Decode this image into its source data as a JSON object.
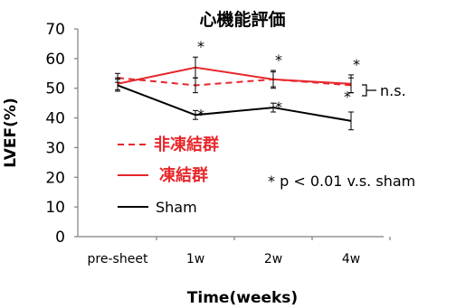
{
  "chart_data": {
    "type": "line",
    "title": "心機能評価",
    "xlabel": "Time(weeks)",
    "ylabel": "LVEF(%)",
    "ylim": [
      0,
      70
    ],
    "yticks": [
      "0",
      "10",
      "20",
      "30",
      "40",
      "50",
      "60",
      "70"
    ],
    "categories": [
      "pre-sheet",
      "1w",
      "2w",
      "4w"
    ],
    "series": [
      {
        "name": "非凍結群",
        "color": "#e8262b",
        "dash": true,
        "values": [
          53.5,
          51,
          53,
          51
        ],
        "errors": [
          1.5,
          2.5,
          2.5,
          2.5
        ]
      },
      {
        "name": "凍結群",
        "color": "#e8262b",
        "dash": false,
        "values": [
          51.5,
          57,
          53,
          51.5
        ],
        "errors": [
          2,
          3.5,
          3,
          3
        ]
      },
      {
        "name": "Sham",
        "color": "#000000",
        "dash": false,
        "values": [
          51,
          41,
          43.5,
          39
        ],
        "errors": [
          2,
          1.5,
          1.5,
          3
        ]
      }
    ],
    "significance": {
      "marker": "*",
      "note": "* p < 0.01 v.s. sham",
      "ns_label": "n.s."
    }
  }
}
